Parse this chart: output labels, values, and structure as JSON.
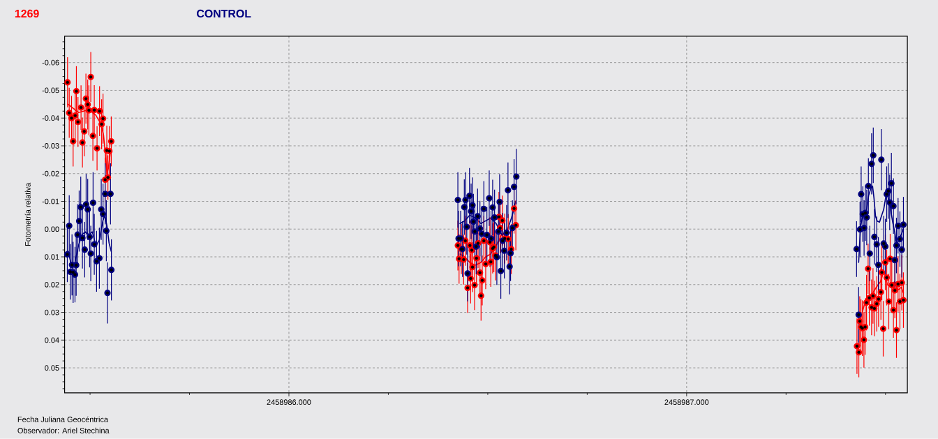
{
  "chart_data": {
    "type": "scatter",
    "xlabel": "Fecha Juliana Geocéntrica",
    "ylabel": "Fotometría relativa",
    "annotations": [
      "Observador: Ariel Stechina"
    ],
    "xlim": [
      2458985.436,
      2458987.555
    ],
    "ylim": [
      0.059,
      -0.0695
    ],
    "xticks": [
      {
        "value": 2458985.5,
        "label": null
      },
      {
        "value": 2458985.75,
        "label": null
      },
      {
        "value": 2458986,
        "label": "2458986.000"
      },
      {
        "value": 2458986.25,
        "label": null
      },
      {
        "value": 2458986.5,
        "label": null
      },
      {
        "value": 2458986.75,
        "label": null
      },
      {
        "value": 2458987,
        "label": "2458987.000"
      },
      {
        "value": 2458987.25,
        "label": null
      },
      {
        "value": 2458987.5,
        "label": null
      }
    ],
    "yticks": [
      {
        "value": -0.0675,
        "label": null
      },
      {
        "value": -0.065,
        "label": null
      },
      {
        "value": -0.0625,
        "label": null
      },
      -0.06,
      {
        "value": -0.0575,
        "label": null
      },
      {
        "value": -0.055,
        "label": null
      },
      {
        "value": -0.0525,
        "label": null
      },
      -0.05,
      {
        "value": -0.0475,
        "label": null
      },
      {
        "value": -0.045,
        "label": null
      },
      {
        "value": -0.0425,
        "label": null
      },
      -0.04,
      {
        "value": -0.0375,
        "label": null
      },
      {
        "value": -0.035,
        "label": null
      },
      {
        "value": -0.0325,
        "label": null
      },
      -0.03,
      {
        "value": -0.0275,
        "label": null
      },
      {
        "value": -0.025,
        "label": null
      },
      {
        "value": -0.0225,
        "label": null
      },
      -0.02,
      {
        "value": -0.0175,
        "label": null
      },
      {
        "value": -0.015,
        "label": null
      },
      {
        "value": -0.0125,
        "label": null
      },
      -0.01,
      {
        "value": -0.0075,
        "label": null
      },
      {
        "value": -0.005,
        "label": null
      },
      {
        "value": -0.0025,
        "label": null
      },
      {
        "value": 0,
        "label": "0.00"
      },
      {
        "value": 0.0025,
        "label": null
      },
      {
        "value": 0.005,
        "label": null
      },
      {
        "value": 0.0075,
        "label": null
      },
      0.01,
      {
        "value": 0.0125,
        "label": null
      },
      {
        "value": 0.015,
        "label": null
      },
      {
        "value": 0.0175,
        "label": null
      },
      0.02,
      {
        "value": 0.0225,
        "label": null
      },
      {
        "value": 0.025,
        "label": null
      },
      {
        "value": 0.0275,
        "label": null
      },
      0.03,
      {
        "value": 0.0325,
        "label": null
      },
      {
        "value": 0.035,
        "label": null
      },
      {
        "value": 0.0375,
        "label": null
      },
      0.04,
      {
        "value": 0.0425,
        "label": null
      },
      {
        "value": 0.045,
        "label": null
      },
      {
        "value": 0.0475,
        "label": null
      },
      0.05,
      {
        "value": 0.0525,
        "label": null
      },
      {
        "value": 0.055,
        "label": null
      },
      {
        "value": 0.0575,
        "label": null
      }
    ],
    "grid": true,
    "marker": "circle",
    "series": [
      {
        "name": "1269",
        "color": "#ff0000",
        "x": [
          2458985.4434,
          2458985.4476,
          2458985.4534,
          2458985.4574,
          2458985.4626,
          2458985.4656,
          2458985.4696,
          2458985.4773,
          2458985.4808,
          2458985.4854,
          2458985.4896,
          2458985.4941,
          2458985.4971,
          2458985.5018,
          2458985.5071,
          2458985.5106,
          2458985.5176,
          2458985.5239,
          2458985.5291,
          2458985.5326,
          2458985.5379,
          2458985.5421,
          2458985.5449,
          2458985.5486,
          2458985.5533,
          2458986,
          2458986.4248,
          2458986.4278,
          2458986.4336,
          2458986.4393,
          2458986.4436,
          2458986.4493,
          2458986.4551,
          2458986.4569,
          2458986.4598,
          2458986.4616,
          2458986.4668,
          2458986.4716,
          2458986.4756,
          2458986.4803,
          2458986.4831,
          2458986.4861,
          2458986.4901,
          2458986.4948,
          2458986.5053,
          2458986.5076,
          2458986.5123,
          2458986.5153,
          2458986.5193,
          2458986.5281,
          2458986.5311,
          2458986.5368,
          2458986.5426,
          2458986.5514,
          2458986.5591,
          2458986.5661,
          2458986.5706,
          2458987,
          2458987.4283,
          2458987.433,
          2458987.4353,
          2458987.4383,
          2458987.4418,
          2458987.4458,
          2458987.4488,
          2458987.4523,
          2458987.4563,
          2458987.4593,
          2458987.4651,
          2458987.4686,
          2458987.4721,
          2458987.478,
          2458987.4826,
          2458987.4885,
          2458987.4908,
          2458987.4943,
          2458987.4996,
          2458987.5031,
          2458987.5083,
          2458987.5118,
          2458987.5158,
          2458987.52,
          2458987.5235,
          2458987.5276,
          2458987.5316,
          2458987.5363,
          2458987.541,
          2458987.5451
        ],
        "values": [
          -0.0529,
          -0.0419,
          -0.04,
          -0.0316,
          -0.0409,
          -0.0497,
          -0.0386,
          -0.0438,
          -0.0312,
          -0.0352,
          -0.047,
          -0.0449,
          -0.0428,
          -0.0548,
          -0.0336,
          -0.0429,
          -0.0291,
          -0.0425,
          -0.0378,
          -0.0398,
          -0.0178,
          -0.0283,
          -0.0186,
          -0.0281,
          -0.0316,
          null,
          0.0059,
          0.0107,
          0.0072,
          0.011,
          0.0042,
          0.0212,
          0.0059,
          0.0178,
          0.0076,
          0.0137,
          0.0202,
          0.0105,
          0.0051,
          0.0157,
          0.024,
          0.0185,
          0.0042,
          0.0126,
          0.0047,
          0.0118,
          0.007,
          0.0065,
          0.0095,
          -0.0044,
          -0.0004,
          -0.0031,
          0.0034,
          0.0036,
          0.0072,
          -0.0074,
          -0.0014,
          null,
          0.0422,
          0.0444,
          0.0332,
          0.0353,
          0.0357,
          0.0399,
          0.0353,
          0.0265,
          0.0143,
          0.0248,
          0.0282,
          0.0241,
          0.0286,
          0.0269,
          0.0252,
          0.0227,
          0.0156,
          0.0359,
          0.012,
          0.0175,
          0.0261,
          0.0107,
          0.0202,
          0.0292,
          0.0221,
          0.0364,
          0.0198,
          0.0261,
          0.0193,
          0.0256
        ],
        "errors": [
          0.009,
          0.009,
          0.008,
          0.009,
          0.009,
          0.009,
          0.009,
          0.008,
          0.009,
          0.009,
          0.009,
          0.009,
          0.009,
          0.009,
          0.009,
          0.009,
          0.008,
          0.009,
          0.009,
          0.009,
          0.008,
          0.009,
          0.008,
          0.009,
          0.009,
          null,
          0.009,
          0.009,
          0.009,
          0.009,
          0.009,
          0.009,
          0.009,
          0.009,
          0.009,
          0.009,
          0.009,
          0.009,
          0.009,
          0.009,
          0.009,
          0.009,
          0.009,
          0.009,
          0.009,
          0.009,
          0.009,
          0.009,
          0.009,
          0.009,
          0.009,
          0.009,
          0.009,
          0.009,
          0.009,
          0.009,
          0.009,
          null,
          0.01,
          0.009,
          0.009,
          0.01,
          0.01,
          0.01,
          0.01,
          0.01,
          0.009,
          0.01,
          0.01,
          0.01,
          0.01,
          0.01,
          0.01,
          0.01,
          0.01,
          0.01,
          0.01,
          0.01,
          0.01,
          0.009,
          0.01,
          0.01,
          0.01,
          0.01,
          0.01,
          0.01,
          0.01,
          0.01
        ]
      },
      {
        "name": "CONTROL",
        "color": "#000080",
        "x": [
          2458985.4428,
          2458985.4476,
          2458985.4504,
          2458985.4546,
          2458985.4574,
          2458985.4621,
          2458985.4651,
          2458985.4686,
          2458985.4726,
          2458985.4766,
          2458985.4808,
          2458985.4866,
          2458985.4901,
          2458985.4941,
          2458985.4989,
          2458985.5018,
          2458985.5076,
          2458985.5106,
          2458985.5164,
          2458985.5234,
          2458985.5281,
          2458985.5326,
          2458985.5379,
          2458985.5409,
          2458985.5438,
          2458985.5514,
          2458985.5536,
          2458986,
          2458986.4248,
          2458986.4266,
          2458986.4318,
          2458986.4365,
          2458986.441,
          2458986.444,
          2458986.4472,
          2458986.4493,
          2458986.4541,
          2458986.4581,
          2458986.4616,
          2458986.4639,
          2458986.4674,
          2458986.4709,
          2458986.4744,
          2458986.4803,
          2458986.4849,
          2458986.4901,
          2458986.4978,
          2458986.5036,
          2458986.5083,
          2458986.5123,
          2458986.5171,
          2458986.5228,
          2458986.5269,
          2458986.5298,
          2458986.5328,
          2458986.5374,
          2458986.5416,
          2458986.5473,
          2458986.5508,
          2458986.5549,
          2458986.5573,
          2458986.5619,
          2458986.5661,
          2458986.5718,
          2458987,
          2458987.4273,
          2458987.4325,
          2458987.436,
          2458987.4388,
          2458987.443,
          2458987.4462,
          2458987.4494,
          2458987.4528,
          2458987.457,
          2458987.4605,
          2458987.4651,
          2458987.4693,
          2458987.4721,
          2458987.478,
          2458987.4821,
          2458987.4896,
          2458987.4955,
          2458987.4996,
          2458987.5031,
          2458987.5071,
          2458987.5106,
          2458987.5148,
          2458987.52,
          2458987.5235,
          2458987.5276,
          2458987.5316,
          2458987.5363,
          2458987.541,
          2458987.5451
        ],
        "values": [
          0.0091,
          -0.0012,
          0.0154,
          0.0129,
          0.0156,
          0.0164,
          0.013,
          0.002,
          -0.0029,
          -0.0079,
          0.0032,
          0.0074,
          -0.0089,
          -0.0071,
          0.0028,
          0.0088,
          -0.0095,
          0.0055,
          0.0116,
          0.0105,
          -0.0071,
          -0.0054,
          -0.0127,
          0.0006,
          0.023,
          -0.0127,
          0.0147,
          null,
          -0.0105,
          0.0034,
          0.0034,
          0.0072,
          -0.0079,
          -0.0105,
          -0.0008,
          0.016,
          -0.012,
          -0.0064,
          -0.0086,
          -0.0027,
          0.0009,
          0.0063,
          -0.0046,
          -0.0002,
          0.0017,
          -0.0073,
          0.0021,
          -0.0111,
          0.0034,
          -0.0078,
          -0.0042,
          0.0101,
          0.0009,
          -0.0098,
          0.0151,
          0.0042,
          0.0078,
          0.0013,
          -0.014,
          0.0135,
          0.0087,
          -0.0004,
          -0.0152,
          -0.0189,
          null,
          0.0072,
          0.0309,
          0.0001,
          -0.0126,
          -0.0054,
          -0.0004,
          -0.0058,
          -0.0042,
          -0.0155,
          0.0088,
          -0.0235,
          -0.0266,
          0.0028,
          0.0055,
          0.0129,
          -0.025,
          0.0052,
          0.0063,
          -0.0126,
          -0.0137,
          -0.0096,
          -0.0165,
          -0.0083,
          0.0112,
          0.0059,
          -0.0012,
          0.0036,
          0.0074,
          -0.0016
        ],
        "errors": [
          0.01,
          0.011,
          0.01,
          0.011,
          0.011,
          0.01,
          0.011,
          0.011,
          0.011,
          0.011,
          0.011,
          0.01,
          0.011,
          0.011,
          0.011,
          0.01,
          0.011,
          0.011,
          0.011,
          0.011,
          0.011,
          0.011,
          0.011,
          0.011,
          0.011,
          0.011,
          0.011,
          null,
          0.01,
          0.01,
          0.01,
          0.01,
          0.01,
          0.01,
          0.01,
          0.01,
          0.01,
          0.01,
          0.01,
          0.01,
          0.01,
          0.01,
          0.01,
          0.01,
          0.01,
          0.01,
          0.01,
          0.01,
          0.01,
          0.01,
          0.01,
          0.01,
          0.01,
          0.01,
          0.01,
          0.01,
          0.01,
          0.01,
          0.01,
          0.01,
          0.01,
          0.01,
          0.01,
          0.01,
          null,
          0.01,
          0.01,
          0.01,
          0.01,
          0.01,
          0.01,
          0.01,
          0.01,
          0.01,
          0.01,
          0.011,
          0.01,
          0.01,
          0.01,
          0.01,
          0.011,
          0.01,
          0.01,
          0.01,
          0.01,
          0.01,
          0.011,
          0.01,
          0.01,
          0.01,
          0.01,
          0.01,
          0.01,
          0.01
        ]
      },
      {
        "type": "line",
        "marker": "none",
        "color": "#ff0000",
        "x": [
          2458985.4446,
          2458985.4708,
          2458985.4971,
          2458985.5146,
          2458985.5268,
          2458985.5338,
          2458985.5391,
          2458985.5426,
          2458985.5461,
          2458985.5513,
          2458986,
          2458986.4301,
          2458986.4423,
          2458986.4546,
          2458986.4686,
          2458986.4826,
          2458986.4948,
          2458986.5071,
          2458986.5211,
          2458986.5351,
          2458986.5473,
          2458986.5596,
          2458986.5701,
          2458987,
          2458987.4348,
          2458987.4418,
          2458987.4506,
          2458987.4593,
          2458987.4681,
          2458987.4768,
          2458987.4873,
          2458987.4961,
          2458987.5048,
          2458987.5136,
          2458987.5223,
          2458987.5311,
          2458987.5398,
          2458987.5451
        ],
        "values": [
          -0.045,
          -0.042,
          -0.043,
          -0.041,
          -0.038,
          -0.034,
          -0.026,
          -0.02,
          -0.022,
          -0.028,
          null,
          0.009,
          0.01,
          0.012,
          0.013,
          0.012,
          0.01,
          0.009,
          0.006,
          0.002,
          0.002,
          0.001,
          -0.002,
          null,
          0.034,
          0.03,
          0.025,
          0.026,
          0.023,
          0.021,
          0.019,
          0.015,
          0.02,
          0.021,
          0.019,
          0.022,
          0.021,
          0.023
        ]
      },
      {
        "type": "line",
        "marker": "none",
        "color": "#000080",
        "x": [
          2458985.4446,
          2458985.4534,
          2458985.4621,
          2458985.4708,
          2458985.4796,
          2458985.4883,
          2458985.4971,
          2458985.5058,
          2458985.5146,
          2458985.5233,
          2458985.5321,
          2458985.5373,
          2458985.5426,
          2458985.5478,
          2458985.5531,
          2458986,
          2458986.4301,
          2458986.4423,
          2458986.4546,
          2458986.4686,
          2458986.4826,
          2458986.4948,
          2458986.5071,
          2458986.5211,
          2458986.5351,
          2458986.5473,
          2458986.5596,
          2458986.5701,
          2458987,
          2458987.4325,
          2458987.4371,
          2458987.443,
          2458987.4518,
          2458987.4576,
          2458987.4633,
          2458987.4675,
          2458987.471,
          2458987.475,
          2458987.4791,
          2458987.485,
          2458987.4896,
          2458987.4955,
          2458987.5013,
          2458987.506,
          2458987.5118,
          2458987.5176,
          2458987.5235,
          2458987.5281,
          2458987.5333,
          2458987.5393,
          2458987.5451
        ],
        "values": [
          0.008,
          0.013,
          0.012,
          0.006,
          0.002,
          0.001,
          0.002,
          0.001,
          0.006,
          0.004,
          -0.003,
          -0.005,
          -0.001,
          0.005,
          0.008,
          null,
          -0.002,
          -0.003,
          -0.005,
          -0.004,
          -0.002,
          -0.003,
          -0.004,
          -0.002,
          0.002,
          0.001,
          -0.004,
          -0.01,
          null,
          0.012,
          -0.0004,
          -0.0054,
          -0.0063,
          -0.0121,
          -0.0147,
          -0.0155,
          -0.0113,
          -0.0046,
          -0.0029,
          -0.0025,
          -0.0046,
          -0.0071,
          -0.0121,
          -0.0121,
          -0.0079,
          -0.0029,
          0.0013,
          0.0055,
          0.0034,
          0.0021,
          0
        ]
      }
    ]
  }
}
